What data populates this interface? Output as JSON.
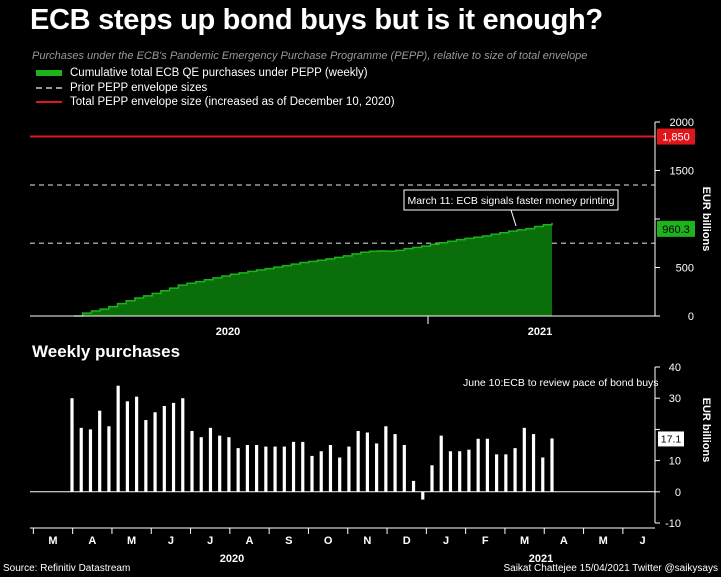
{
  "title": "ECB steps up bond buys but is it enough?",
  "subtitle": "Purchases under the ECB's Pandemic Emergency Purchase Programme (PEPP), relative to size of total envelope",
  "legend": {
    "item1": "Cumulative total ECB QE purchases under PEPP (weekly)",
    "item2": "Prior PEPP envelope sizes",
    "item3": "Total PEPP envelope size (increased as of December 10, 2020)"
  },
  "colors": {
    "green": "#1db31d",
    "red": "#e0161b",
    "gray": "#9a9a9a"
  },
  "section2_title": "Weekly purchases",
  "source": "Source: Refinitiv Datastream",
  "credit": "Saikat Chattejee 15/04/2021 Twitter @saikysays",
  "chart_data": [
    {
      "type": "area",
      "ylabel": "EUR billions",
      "ylim": [
        0,
        2000
      ],
      "yticks": [
        0,
        500,
        1000,
        1500,
        2000
      ],
      "xtick_labels": [
        "2020",
        "2021"
      ],
      "reference_lines": [
        {
          "value": 1850,
          "label": "1,850",
          "style": "solid-red"
        },
        {
          "value": 1350,
          "style": "dashed-gray"
        },
        {
          "value": 750,
          "style": "dashed-gray"
        }
      ],
      "last_value_label": "960.3",
      "annotation": "March 11: ECB signals faster money printing",
      "series": [
        {
          "values": [
            0,
            30,
            51,
            71,
            97,
            128,
            157,
            185,
            208,
            233,
            260,
            288,
            318,
            338,
            354,
            374,
            393,
            412,
            430,
            445,
            460,
            474,
            489,
            504,
            519,
            535,
            552,
            563,
            575,
            589,
            605,
            620,
            640,
            657,
            668,
            670,
            668,
            677,
            695,
            708,
            721,
            738,
            755,
            771,
            788,
            800,
            812,
            825,
            843,
            858,
            875,
            888,
            901,
            923,
            941,
            960.3
          ]
        }
      ]
    },
    {
      "type": "bar",
      "ylabel": "EUR billions",
      "ylim": [
        -10,
        40
      ],
      "yticks": [
        -10,
        0,
        10,
        20,
        30,
        40
      ],
      "month_labels": [
        "M",
        "A",
        "M",
        "J",
        "J",
        "A",
        "S",
        "O",
        "N",
        "D",
        "J",
        "F",
        "M",
        "A",
        "M",
        "J"
      ],
      "year_labels": [
        "2020",
        "2021"
      ],
      "last_value_label": "17.1",
      "annotation": "June 10:ECB to review pace of bond buys",
      "values": [
        30,
        20.5,
        20,
        26,
        21,
        34,
        29,
        30.5,
        23,
        25.5,
        27.5,
        28.5,
        30,
        19.5,
        17.5,
        20.5,
        18,
        17.5,
        14,
        15,
        15,
        14.5,
        14.5,
        14.5,
        16,
        16,
        11.5,
        13,
        15,
        11,
        14.5,
        19.5,
        19,
        15.5,
        21,
        18.5,
        15,
        3.5,
        -2.5,
        8.5,
        18,
        13,
        13,
        13.5,
        17,
        17,
        12,
        12,
        14,
        20.5,
        18.5,
        11,
        17.1
      ]
    }
  ]
}
